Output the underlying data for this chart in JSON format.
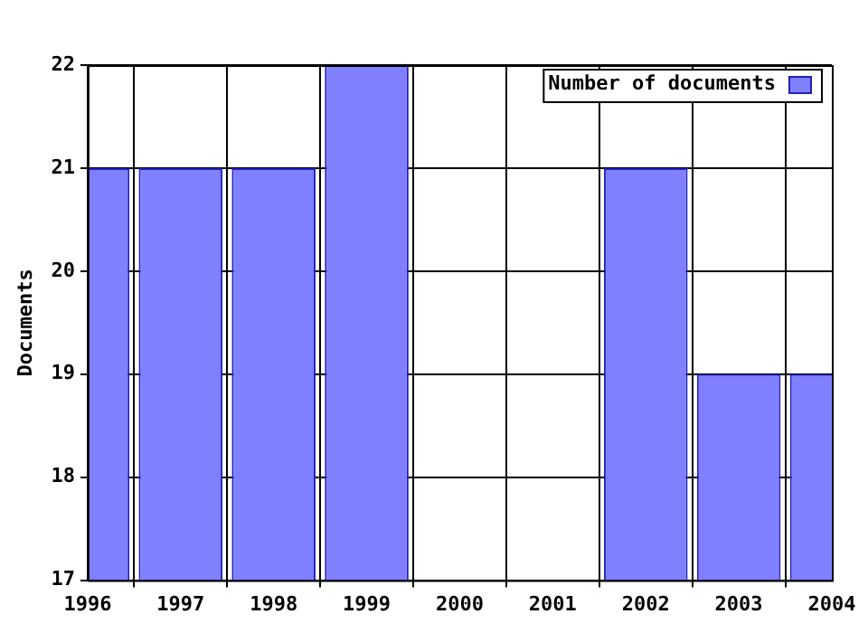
{
  "chart_data": {
    "type": "bar",
    "ylabel": "Documents",
    "x": [
      1996,
      1997,
      1998,
      1999,
      2002,
      2003,
      2004
    ],
    "series": [
      {
        "name": "Number of documents",
        "color": "#8080ff",
        "values": [
          21,
          21,
          21,
          22,
          21,
          19,
          19
        ]
      }
    ],
    "xlim": [
      1996,
      2004
    ],
    "xticks": [
      1996,
      1997,
      1998,
      1999,
      2000,
      2001,
      2002,
      2003,
      2004
    ],
    "ylim": [
      17,
      22
    ],
    "yticks": [
      17,
      18,
      19,
      20,
      21,
      22
    ],
    "grid": true,
    "legend": "top right"
  }
}
